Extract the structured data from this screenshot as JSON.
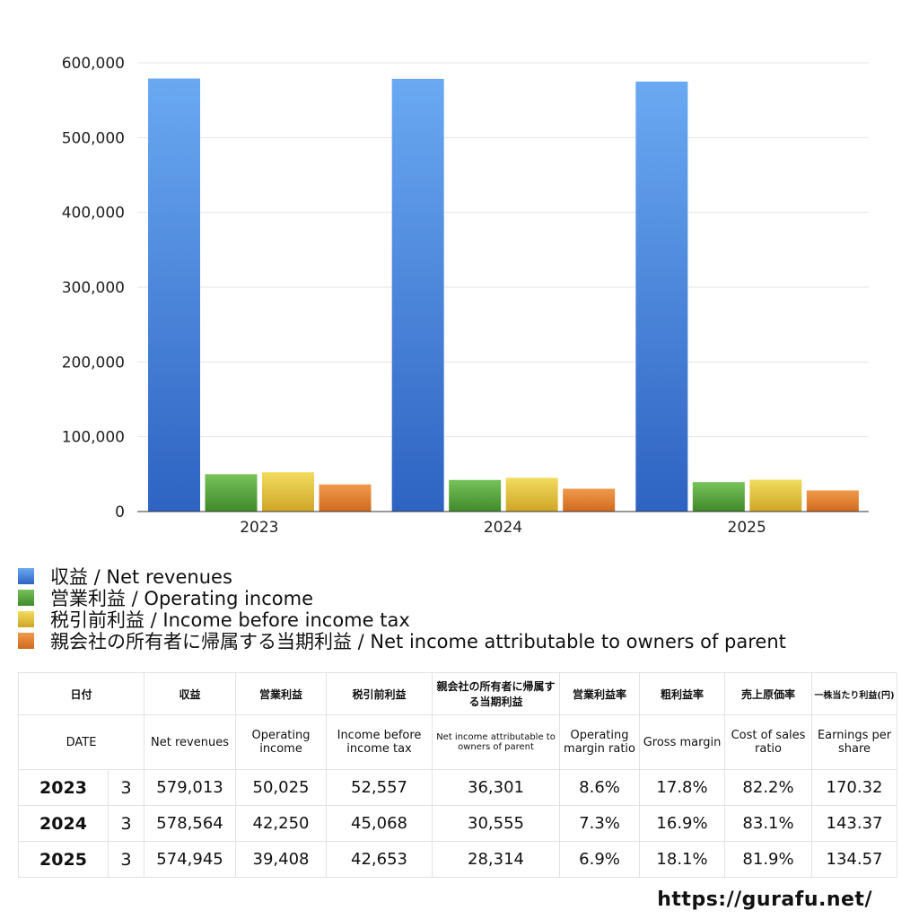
{
  "chart_data": {
    "type": "bar",
    "categories": [
      "2023",
      "2024",
      "2025"
    ],
    "series": [
      {
        "name": "収益 / Net revenues",
        "values": [
          579013,
          578564,
          574945
        ],
        "color": "#3f7fd9"
      },
      {
        "name": "営業利益 / Operating income",
        "values": [
          50025,
          42250,
          39408
        ],
        "color": "#5aa33a"
      },
      {
        "name": "税引前利益 / Income before income tax",
        "values": [
          52557,
          45068,
          42653
        ],
        "color": "#e2c23a"
      },
      {
        "name": "親会社の所有者に帰属する当期利益 / Net income attributable to owners of parent",
        "values": [
          36301,
          30555,
          28314
        ],
        "color": "#e07f2e"
      }
    ],
    "y_ticks": [
      "0",
      "100,000",
      "200,000",
      "300,000",
      "400,000",
      "500,000",
      "600,000"
    ],
    "ylim": [
      0,
      600000
    ],
    "grid": true,
    "legend_position": "bottom-left"
  },
  "table": {
    "header_ja": [
      "日付",
      "",
      "収益",
      "営業利益",
      "税引前利益",
      "親会社の所有者に帰属する当期利益",
      "営業利益率",
      "粗利益率",
      "売上原価率",
      "一株当たり利益(円)"
    ],
    "header_en": [
      "DATE",
      "",
      "Net revenues",
      "Operating income",
      "Income before income tax",
      "Net income attributable to owners of parent",
      "Operating margin ratio",
      "Gross margin",
      "Cost of sales ratio",
      "Earnings per share"
    ],
    "rows": [
      [
        "2023",
        "3",
        "579,013",
        "50,025",
        "52,557",
        "36,301",
        "8.6%",
        "17.8%",
        "82.2%",
        "170.32"
      ],
      [
        "2024",
        "3",
        "578,564",
        "42,250",
        "45,068",
        "30,555",
        "7.3%",
        "16.9%",
        "83.1%",
        "143.37"
      ],
      [
        "2025",
        "3",
        "574,945",
        "39,408",
        "42,653",
        "28,314",
        "6.9%",
        "18.1%",
        "81.9%",
        "134.57"
      ]
    ]
  },
  "footer": {
    "url": "https://gurafu.net/"
  }
}
